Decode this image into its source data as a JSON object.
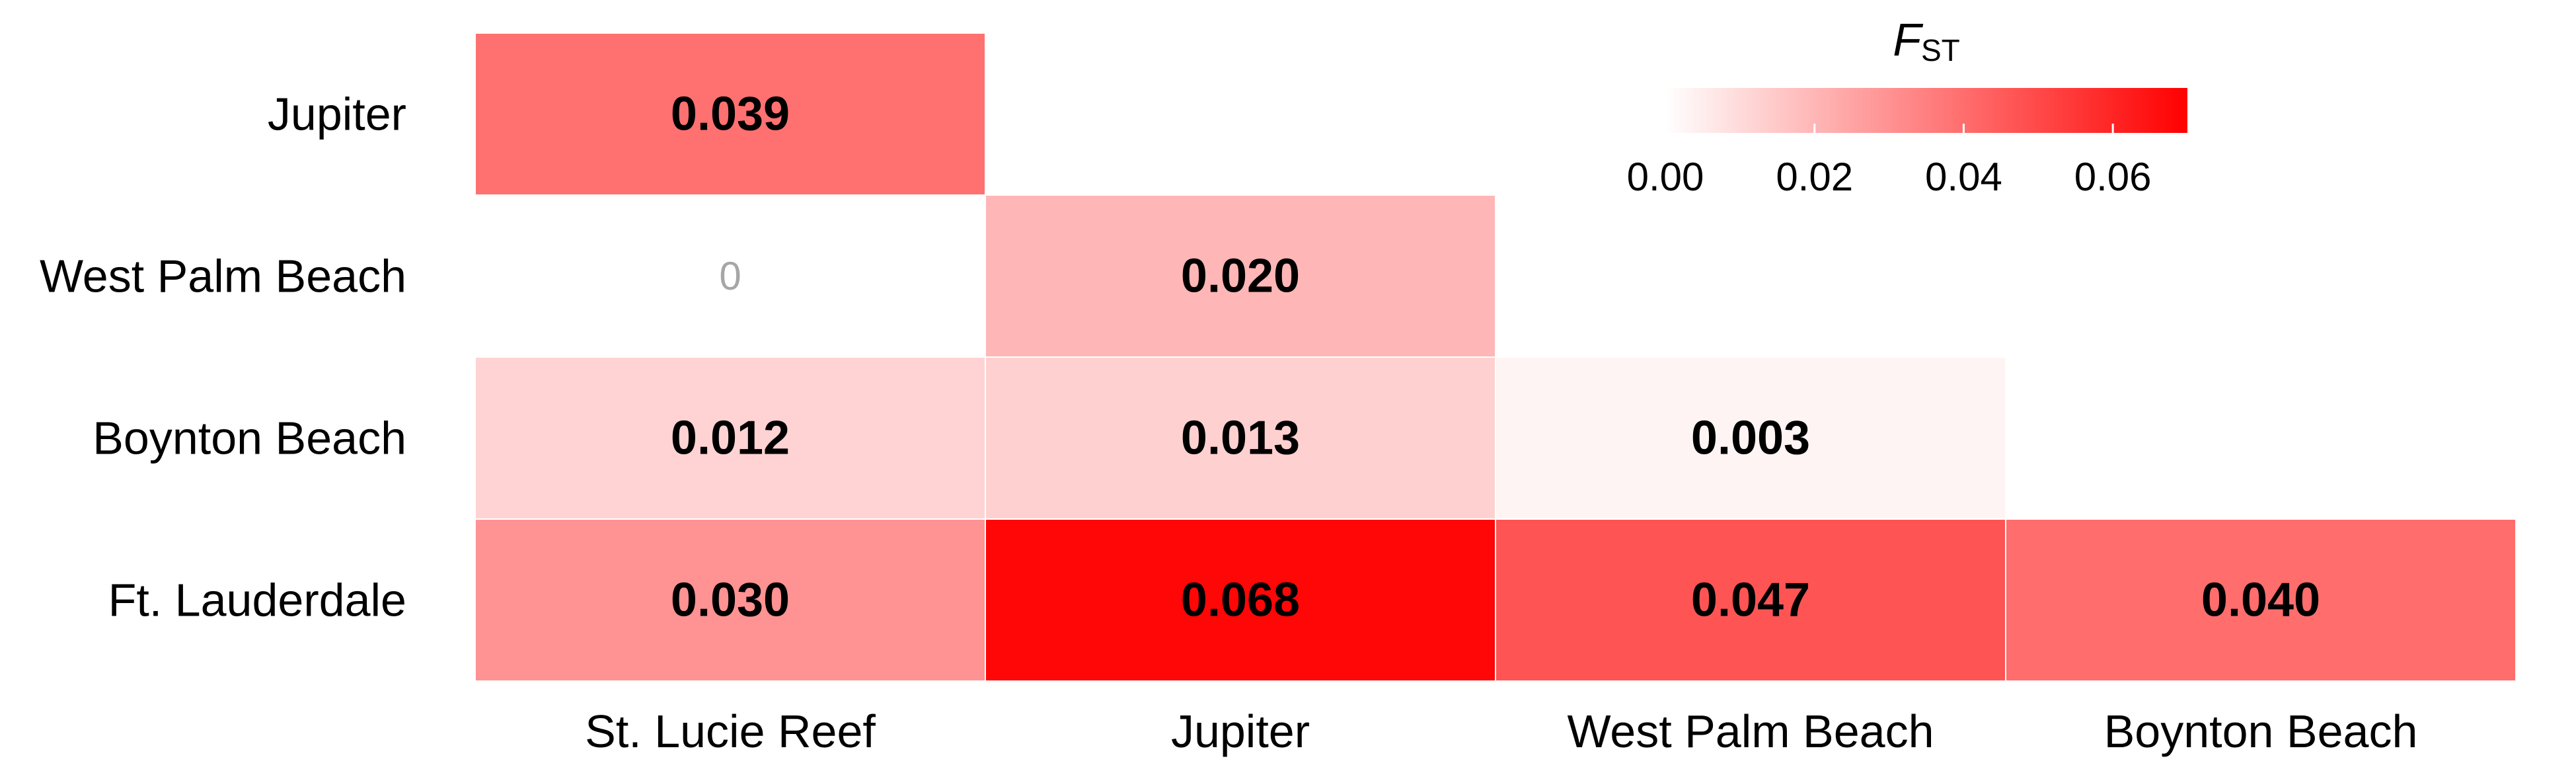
{
  "chart_data": {
    "type": "heatmap",
    "rows": [
      "Jupiter",
      "West Palm Beach",
      "Boynton Beach",
      "Ft. Lauderdale"
    ],
    "columns": [
      "St. Lucie Reef",
      "Jupiter",
      "West Palm Beach",
      "Boynton Beach"
    ],
    "cells": [
      {
        "row": "Jupiter",
        "col": "St. Lucie Reef",
        "value": 0.039,
        "label": "0.039",
        "significant": true
      },
      {
        "row": "West Palm Beach",
        "col": "St. Lucie Reef",
        "value": 0,
        "label": "0",
        "significant": false
      },
      {
        "row": "West Palm Beach",
        "col": "Jupiter",
        "value": 0.02,
        "label": "0.020",
        "significant": true
      },
      {
        "row": "Boynton Beach",
        "col": "St. Lucie Reef",
        "value": 0.012,
        "label": "0.012",
        "significant": true
      },
      {
        "row": "Boynton Beach",
        "col": "Jupiter",
        "value": 0.013,
        "label": "0.013",
        "significant": true
      },
      {
        "row": "Boynton Beach",
        "col": "West Palm Beach",
        "value": 0.003,
        "label": "0.003",
        "significant": true
      },
      {
        "row": "Ft. Lauderdale",
        "col": "St. Lucie Reef",
        "value": 0.03,
        "label": "0.030",
        "significant": true
      },
      {
        "row": "Ft. Lauderdale",
        "col": "Jupiter",
        "value": 0.068,
        "label": "0.068",
        "significant": true
      },
      {
        "row": "Ft. Lauderdale",
        "col": "West Palm Beach",
        "value": 0.047,
        "label": "0.047",
        "significant": true
      },
      {
        "row": "Ft. Lauderdale",
        "col": "Boynton Beach",
        "value": 0.04,
        "label": "0.040",
        "significant": true
      }
    ],
    "legend": {
      "title_main": "F",
      "title_sub": "ST",
      "placement": "top-right",
      "range": [
        0,
        0.07
      ],
      "ticks": [
        0.0,
        0.02,
        0.04,
        0.06
      ],
      "tick_labels": [
        "0.00",
        "0.02",
        "0.04",
        "0.06"
      ]
    },
    "colors": {
      "low": "#ffffff",
      "high": "#ff0000",
      "insignificant_text": "#a6a6a6"
    },
    "grid": false
  }
}
